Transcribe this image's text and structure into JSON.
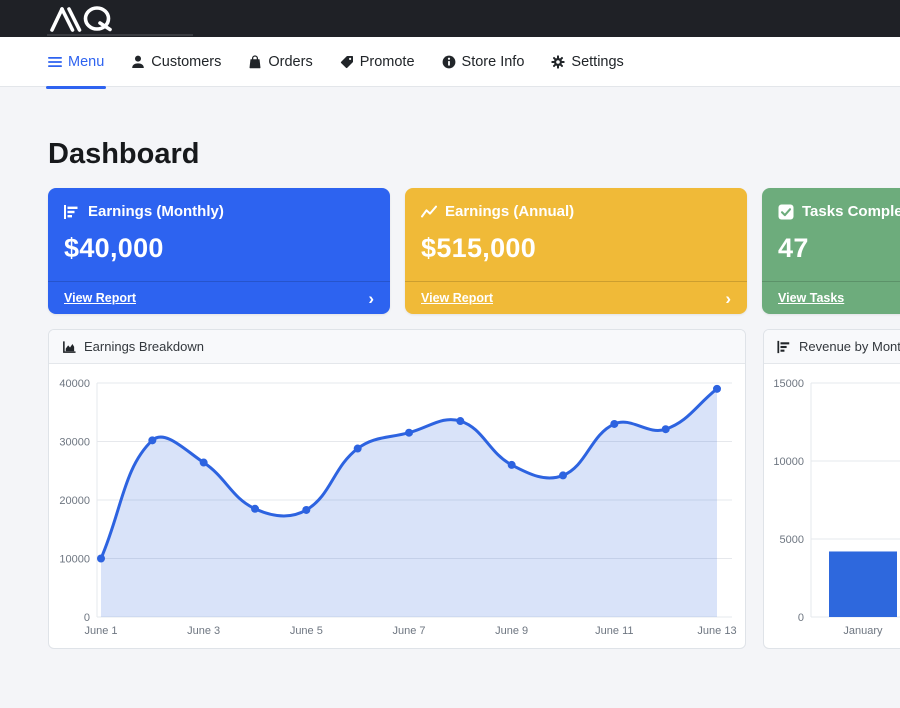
{
  "topbar": {
    "brand": "MQ"
  },
  "nav": {
    "items": [
      {
        "label": "Menu",
        "active": true
      },
      {
        "label": "Customers",
        "active": false
      },
      {
        "label": "Orders",
        "active": false
      },
      {
        "label": "Promote",
        "active": false
      },
      {
        "label": "Store Info",
        "active": false
      },
      {
        "label": "Settings",
        "active": false
      }
    ]
  },
  "page": {
    "title": "Dashboard"
  },
  "stat_cards": [
    {
      "title": "Earnings (Monthly)",
      "value": "$40,000",
      "footer_label": "View Report",
      "chevron": "›",
      "color": "#2d63f0"
    },
    {
      "title": "Earnings (Annual)",
      "value": "$515,000",
      "footer_label": "View Report",
      "chevron": "›",
      "color": "#f0ba38"
    },
    {
      "title": "Tasks Completed",
      "value": "47",
      "footer_label": "View Tasks",
      "chevron": "›",
      "color": "#6dac7c"
    }
  ],
  "chart_data": [
    {
      "type": "line",
      "title": "Earnings Breakdown",
      "x": [
        "June 1",
        "June 2",
        "June 3",
        "June 4",
        "June 5",
        "June 6",
        "June 7",
        "June 8",
        "June 9",
        "June 10",
        "June 11",
        "June 12",
        "June 13"
      ],
      "series": [
        {
          "name": "Earnings",
          "values": [
            10000,
            30200,
            26400,
            18500,
            18300,
            28800,
            31500,
            33500,
            26000,
            24200,
            33000,
            32100,
            39000
          ]
        }
      ],
      "ylim": [
        0,
        40000
      ],
      "ytick_step": 10000,
      "xtick_every": 2,
      "grid": true,
      "legend": "none",
      "line_color": "#2d63e0",
      "fill_color": "rgba(45,99,224,0.18)"
    },
    {
      "type": "bar",
      "title": "Revenue by Month",
      "categories": [
        "January"
      ],
      "values": [
        4200
      ],
      "ylim": [
        0,
        15000
      ],
      "ytick_step": 5000,
      "grid": true,
      "legend": "none",
      "bar_color": "#2e68dd"
    }
  ]
}
